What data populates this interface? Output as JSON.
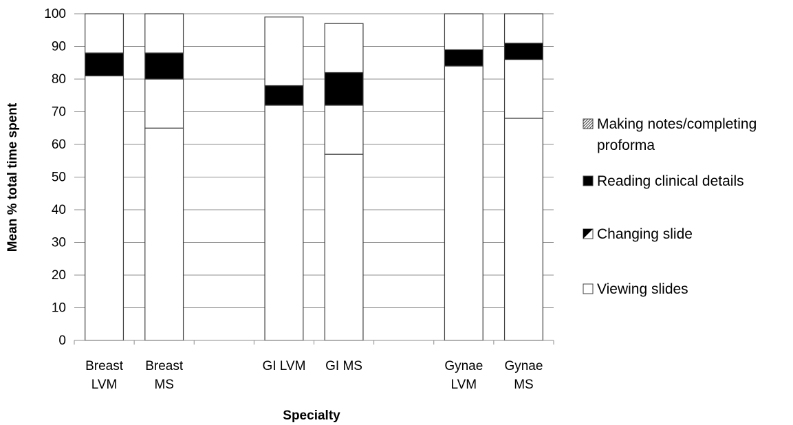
{
  "chart_data": {
    "type": "bar",
    "stacked": true,
    "categories": [
      [
        "Breast",
        "LVM"
      ],
      [
        "Breast",
        "MS"
      ],
      [
        "GI LVM"
      ],
      [
        "GI MS"
      ],
      [
        "Gynae",
        "LVM"
      ],
      [
        "Gynae",
        "MS"
      ]
    ],
    "category_groups": [
      [
        0,
        1
      ],
      [
        2,
        3
      ],
      [
        4,
        5
      ]
    ],
    "series": [
      {
        "name": "Viewing slides",
        "values": [
          81,
          65,
          72,
          57,
          84,
          68
        ],
        "color": "#ffffff",
        "pattern": "none"
      },
      {
        "name": "Changing slide",
        "values": [
          0,
          15,
          0,
          15,
          0,
          18
        ],
        "color": "#ffffff",
        "pattern": "none"
      },
      {
        "name": "Reading clinical details",
        "values": [
          7,
          8,
          6,
          10,
          5,
          5
        ],
        "color": "#000000",
        "pattern": "none"
      },
      {
        "name": "Making notes/completing proforma",
        "values": [
          12,
          12,
          21,
          15,
          11,
          9
        ],
        "color": "#ffffff",
        "pattern": "none"
      }
    ],
    "legend": {
      "position": "right",
      "entries": [
        {
          "lines": [
            "Making notes/completing",
            "proforma"
          ],
          "swatch": "hatch"
        },
        {
          "lines": [
            "Reading clinical details"
          ],
          "swatch": "solid-black"
        },
        {
          "lines": [
            "Changing slide"
          ],
          "swatch": "half-black"
        },
        {
          "lines": [
            "Viewing slides"
          ],
          "swatch": "white"
        }
      ]
    },
    "title": "",
    "xlabel": "Specialty",
    "ylabel": "Mean % total time spent",
    "ylim": [
      0,
      100
    ],
    "yticks": [
      0,
      10,
      20,
      30,
      40,
      50,
      60,
      70,
      80,
      90,
      100
    ],
    "grid": true
  }
}
